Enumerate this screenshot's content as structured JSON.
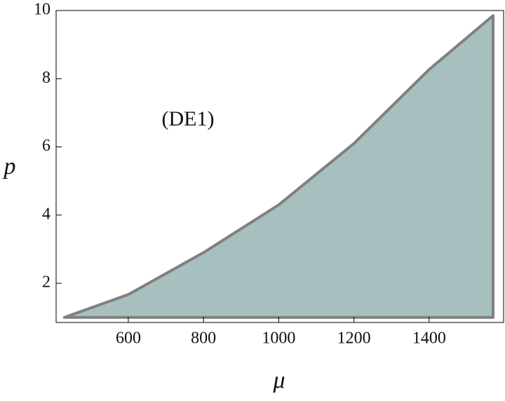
{
  "chart_data": {
    "type": "area",
    "x_label": "μ",
    "y_label": "p",
    "annotation": "(DE1)",
    "x": [
      430,
      600,
      800,
      1000,
      1200,
      1400,
      1570
    ],
    "values": [
      1,
      1.67,
      2.9,
      4.3,
      6.1,
      8.27,
      9.85
    ],
    "lower_values": [
      1,
      1,
      1,
      1,
      1,
      1,
      1
    ],
    "color": "#a8bfc0",
    "edge_color": "#808080",
    "xlim": [
      408,
      1598
    ],
    "xticks": [
      600,
      800,
      1000,
      1200,
      1400
    ],
    "ylim": [
      0.85,
      10
    ],
    "yticks": [
      2,
      4,
      6,
      8,
      10
    ],
    "grid": false
  }
}
